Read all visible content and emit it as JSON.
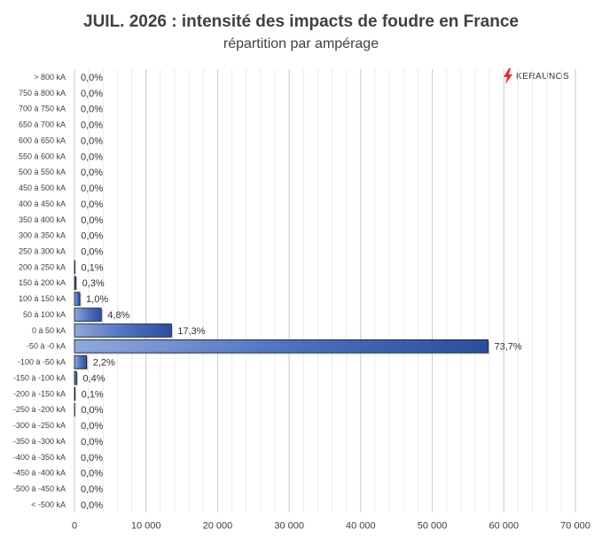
{
  "chart_data": {
    "type": "bar",
    "orientation": "horizontal",
    "title": "JUIL. 2026 : intensité des impacts de foudre en France",
    "subtitle": "répartition par ampérage",
    "categories": [
      "> 800 kA",
      "750 à 800 kA",
      "700 à 750 kA",
      "650 à 700 kA",
      "600 à 650 kA",
      "550 à 600 kA",
      "500 à 550 kA",
      "450 à 500 kA",
      "400 à 450 kA",
      "350 à 400 kA",
      "300 à 350 kA",
      "250 à 300 kA",
      "200 à 250 kA",
      "150 à 200 kA",
      "100 à 150 kA",
      "50 à 100 kA",
      "0 à 50 kA",
      "-50 à -0 kA",
      "-100 à -50 kA",
      "-150 à -100 kA",
      "-200 à -150 kA",
      "-250 à -200 kA",
      "-300 à -250 kA",
      "-350 à -300 kA",
      "-400 à -350 kA",
      "-450 à -400 kA",
      "-500 à -450 kA",
      "< -500 kA"
    ],
    "values": [
      0,
      0,
      0,
      0,
      0,
      0,
      0,
      20,
      15,
      25,
      30,
      30,
      60,
      200,
      750,
      3750,
      13550,
      57800,
      1700,
      300,
      80,
      40,
      20,
      30,
      0,
      0,
      0,
      0
    ],
    "labels": [
      "0,0%",
      "0,0%",
      "0,0%",
      "0,0%",
      "0,0%",
      "0,0%",
      "0,0%",
      "0,0%",
      "0,0%",
      "0,0%",
      "0,0%",
      "0,0%",
      "0,1%",
      "0,3%",
      "1,0%",
      "4,8%",
      "17,3%",
      "73,7%",
      "2,2%",
      "0,4%",
      "0,1%",
      "0,0%",
      "0,0%",
      "0,0%",
      "0,0%",
      "0,0%",
      "0,0%",
      "0,0%"
    ],
    "xlim": [
      0,
      70000
    ],
    "xticks": [
      0,
      10000,
      20000,
      30000,
      40000,
      50000,
      60000,
      70000
    ],
    "xtick_labels": [
      "0",
      "10 000",
      "20 000",
      "30 000",
      "40 000",
      "50 000",
      "60 000",
      "70 000"
    ],
    "grid": true,
    "bar_color": "#3a5fae"
  },
  "logo": {
    "text": "KERAUNOS",
    "icon": "lightning-bolt-icon",
    "color": "#d9302c"
  }
}
